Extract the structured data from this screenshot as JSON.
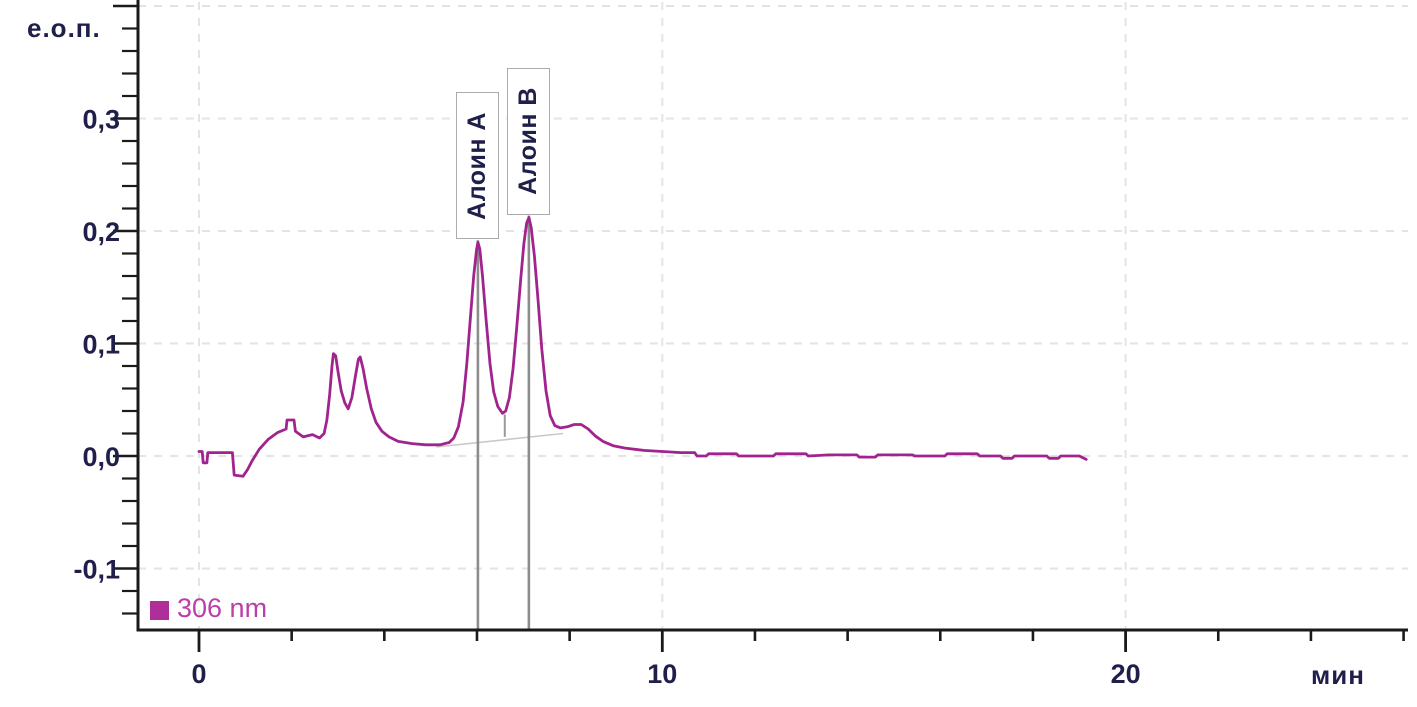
{
  "chart": {
    "y_unit_label": "е.о.п.",
    "x_unit_label": "мин"
  },
  "legend": {
    "label": "306 nm"
  },
  "colors": {
    "trace": "#A1238E",
    "legend_square": "#AE2F9A",
    "legend_text": "#BC3FA8",
    "axis": "#1a1a1a",
    "grid": "#e4e4e4",
    "marker_line": "#8c8c8c",
    "valley_tick": "#999999",
    "integration_baseline": "#c9c9c9",
    "box_border": "#ababab",
    "tick_text": "#1f1f4a"
  },
  "chart_data": {
    "type": "line",
    "title": "",
    "xlabel": "мин",
    "ylabel": "е.о.п.",
    "x_axis": {
      "major_ticks": [
        {
          "t": 0,
          "label": "0"
        },
        {
          "t": 10,
          "label": "10"
        },
        {
          "t": 20,
          "label": "20"
        }
      ],
      "minor_tick_step_min": 2,
      "minor_tick_range_min": [
        2,
        26
      ],
      "grid_at_majors": true
    },
    "y_axis": {
      "major_ticks": [
        {
          "v": 0.4,
          "label": ""
        },
        {
          "v": 0.3,
          "label": "0,3"
        },
        {
          "v": 0.2,
          "label": "0,2"
        },
        {
          "v": 0.1,
          "label": "0,1"
        },
        {
          "v": 0.0,
          "label": "0,0"
        },
        {
          "v": -0.1,
          "label": "-0,1"
        }
      ],
      "minor_tick_step": 0.02,
      "minor_tick_range": [
        -0.14,
        0.38
      ],
      "grid_at_majors": true
    },
    "legend_position": "bottom-left",
    "peaks": [
      {
        "label": "Алоин А",
        "retention_min": 6.02,
        "height_eop": 0.19
      },
      {
        "label": "Алоин В",
        "retention_min": 7.12,
        "height_eop": 0.212
      }
    ],
    "valley_marker": {
      "t": 6.6,
      "v_top": 0.037,
      "v_bottom": 0.017
    },
    "integration_baseline": {
      "from": [
        5.12,
        0.008
      ],
      "to": [
        7.86,
        0.02
      ]
    },
    "series": [
      {
        "name": "306 nm",
        "points": [
          [
            0.0,
            0.004
          ],
          [
            0.07,
            0.004
          ],
          [
            0.09,
            -0.006
          ],
          [
            0.17,
            -0.006
          ],
          [
            0.19,
            0.003
          ],
          [
            0.72,
            0.003
          ],
          [
            0.76,
            -0.017
          ],
          [
            0.95,
            -0.018
          ],
          [
            1.05,
            -0.012
          ],
          [
            1.15,
            -0.004
          ],
          [
            1.3,
            0.006
          ],
          [
            1.5,
            0.015
          ],
          [
            1.7,
            0.021
          ],
          [
            1.88,
            0.024
          ],
          [
            1.9,
            0.032
          ],
          [
            2.05,
            0.032
          ],
          [
            2.08,
            0.022
          ],
          [
            2.25,
            0.017
          ],
          [
            2.45,
            0.019
          ],
          [
            2.6,
            0.016
          ],
          [
            2.7,
            0.02
          ],
          [
            2.76,
            0.032
          ],
          [
            2.82,
            0.055
          ],
          [
            2.87,
            0.08
          ],
          [
            2.9,
            0.091
          ],
          [
            2.95,
            0.089
          ],
          [
            3.0,
            0.075
          ],
          [
            3.07,
            0.058
          ],
          [
            3.15,
            0.047
          ],
          [
            3.22,
            0.042
          ],
          [
            3.3,
            0.052
          ],
          [
            3.38,
            0.072
          ],
          [
            3.44,
            0.086
          ],
          [
            3.48,
            0.088
          ],
          [
            3.54,
            0.078
          ],
          [
            3.62,
            0.06
          ],
          [
            3.72,
            0.042
          ],
          [
            3.82,
            0.03
          ],
          [
            3.95,
            0.022
          ],
          [
            4.1,
            0.017
          ],
          [
            4.3,
            0.013
          ],
          [
            4.6,
            0.011
          ],
          [
            4.9,
            0.01
          ],
          [
            5.2,
            0.01
          ],
          [
            5.4,
            0.012
          ],
          [
            5.5,
            0.016
          ],
          [
            5.6,
            0.026
          ],
          [
            5.7,
            0.048
          ],
          [
            5.78,
            0.082
          ],
          [
            5.86,
            0.124
          ],
          [
            5.93,
            0.16
          ],
          [
            5.99,
            0.183
          ],
          [
            6.02,
            0.19
          ],
          [
            6.06,
            0.184
          ],
          [
            6.12,
            0.16
          ],
          [
            6.2,
            0.12
          ],
          [
            6.28,
            0.082
          ],
          [
            6.36,
            0.057
          ],
          [
            6.45,
            0.044
          ],
          [
            6.55,
            0.038
          ],
          [
            6.62,
            0.04
          ],
          [
            6.7,
            0.052
          ],
          [
            6.78,
            0.078
          ],
          [
            6.86,
            0.115
          ],
          [
            6.94,
            0.155
          ],
          [
            7.01,
            0.188
          ],
          [
            7.07,
            0.207
          ],
          [
            7.12,
            0.212
          ],
          [
            7.17,
            0.203
          ],
          [
            7.24,
            0.178
          ],
          [
            7.32,
            0.138
          ],
          [
            7.4,
            0.095
          ],
          [
            7.49,
            0.058
          ],
          [
            7.58,
            0.036
          ],
          [
            7.68,
            0.027
          ],
          [
            7.8,
            0.025
          ],
          [
            7.95,
            0.026
          ],
          [
            8.1,
            0.028
          ],
          [
            8.25,
            0.028
          ],
          [
            8.4,
            0.024
          ],
          [
            8.55,
            0.018
          ],
          [
            8.72,
            0.013
          ],
          [
            8.95,
            0.009
          ],
          [
            9.2,
            0.007
          ],
          [
            9.6,
            0.005
          ],
          [
            10.0,
            0.004
          ],
          [
            10.4,
            0.003
          ],
          [
            10.7,
            0.003
          ],
          [
            10.75,
            0.0
          ],
          [
            10.95,
            0.0
          ],
          [
            11.0,
            0.002
          ],
          [
            11.6,
            0.002
          ],
          [
            11.65,
            0.0
          ],
          [
            12.4,
            0.0
          ],
          [
            12.45,
            0.002
          ],
          [
            13.1,
            0.002
          ],
          [
            13.15,
            0.0
          ],
          [
            13.6,
            0.001
          ],
          [
            14.2,
            0.001
          ],
          [
            14.25,
            -0.001
          ],
          [
            14.6,
            -0.001
          ],
          [
            14.65,
            0.001
          ],
          [
            15.4,
            0.001
          ],
          [
            15.45,
            0.0
          ],
          [
            16.1,
            0.0
          ],
          [
            16.15,
            0.002
          ],
          [
            16.8,
            0.002
          ],
          [
            16.85,
            0.0
          ],
          [
            17.3,
            0.0
          ],
          [
            17.35,
            -0.002
          ],
          [
            17.55,
            -0.002
          ],
          [
            17.6,
            0.0
          ],
          [
            18.3,
            0.0
          ],
          [
            18.35,
            -0.002
          ],
          [
            18.55,
            -0.002
          ],
          [
            18.6,
            0.0
          ],
          [
            19.0,
            0.0
          ],
          [
            19.15,
            -0.003
          ]
        ]
      }
    ]
  }
}
